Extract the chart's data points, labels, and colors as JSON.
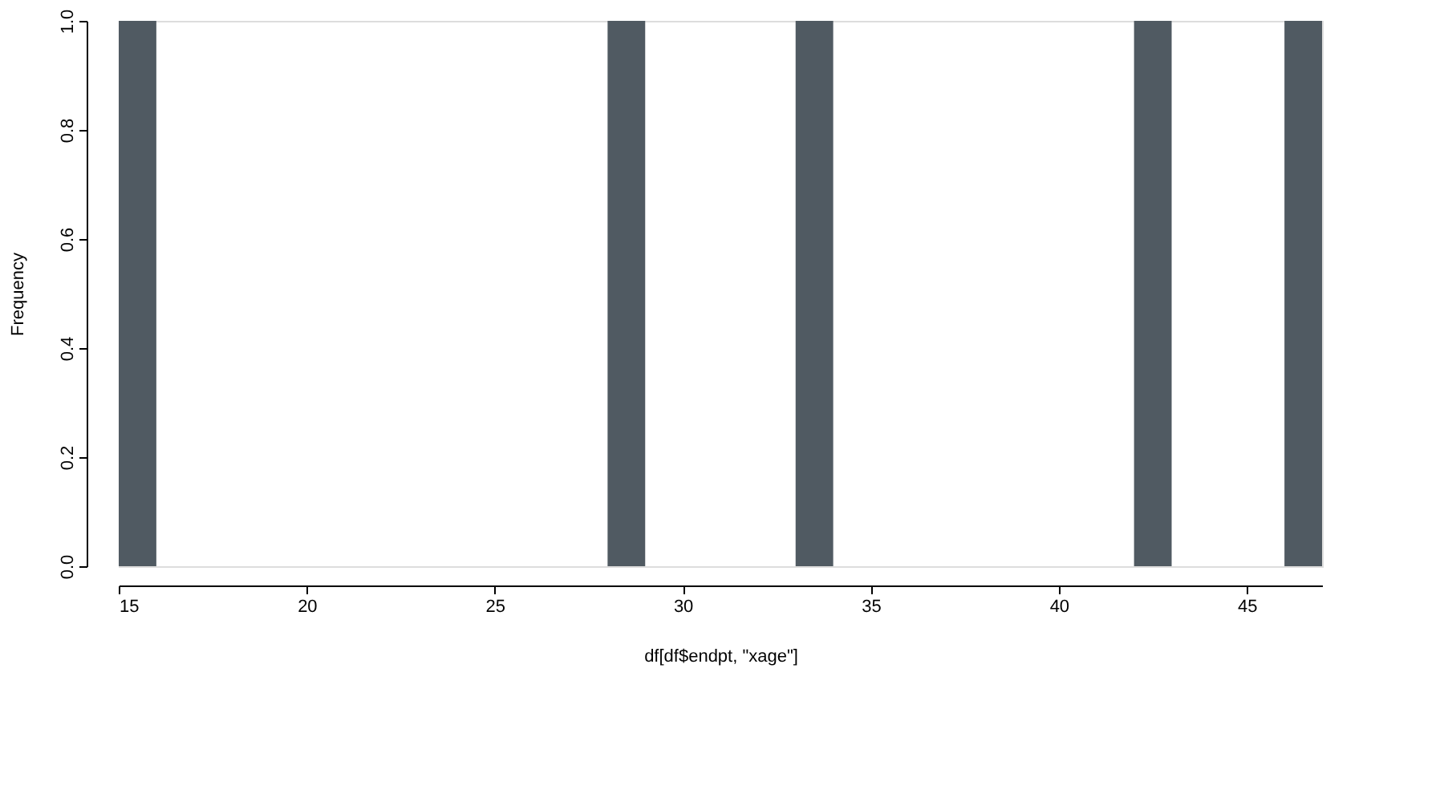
{
  "chart_data": {
    "type": "histogram",
    "xlabel": "df[df$endpt, \"xage\"]",
    "ylabel": "Frequency",
    "bins": [
      15,
      16,
      17,
      18,
      19,
      20,
      21,
      22,
      23,
      24,
      25,
      26,
      27,
      28,
      29,
      30,
      31,
      32,
      33,
      34,
      35,
      36,
      37,
      38,
      39,
      40,
      41,
      42,
      43,
      44,
      45,
      46,
      47
    ],
    "values": [
      1,
      0,
      0,
      0,
      0,
      0,
      0,
      0,
      0,
      0,
      0,
      0,
      0,
      1,
      0,
      0,
      0,
      0,
      1,
      0,
      0,
      0,
      0,
      0,
      0,
      0,
      0,
      1,
      0,
      0,
      0,
      1
    ],
    "color": "#505a62",
    "xlim": [
      15,
      47
    ],
    "xticks": [
      15,
      20,
      25,
      30,
      35,
      40,
      45
    ],
    "ylim": [
      0,
      1
    ],
    "yticks": [
      {
        "value": 0,
        "label": "0.0"
      },
      0.2,
      0.4,
      0.6,
      0.8,
      {
        "value": 1,
        "label": "1.0"
      }
    ],
    "grid": false
  }
}
